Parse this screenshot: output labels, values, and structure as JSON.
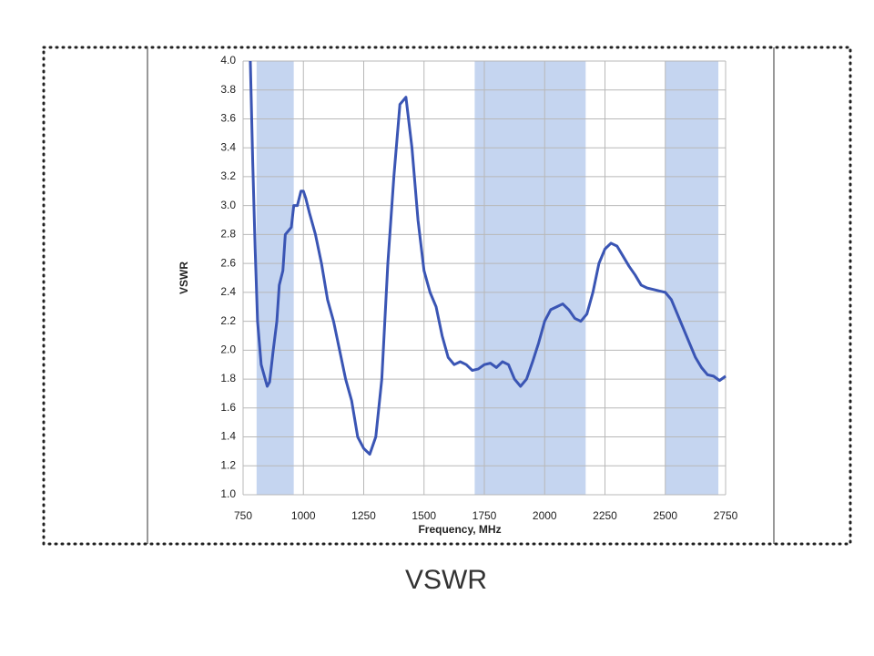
{
  "chart_data": {
    "type": "line",
    "caption": "VSWR",
    "y_label": "VSWR",
    "x_label": "Frequency, MHz",
    "xlim": [
      750,
      2750
    ],
    "xticks": [
      750,
      1000,
      1250,
      1500,
      1750,
      2000,
      2250,
      2500,
      2750
    ],
    "ylim": [
      1,
      4
    ],
    "yticks": [
      {
        "value": 1,
        "label": "1.0"
      },
      {
        "value": 1.2,
        "label": "1.2"
      },
      {
        "value": 1.4,
        "label": "1.4"
      },
      {
        "value": 1.6,
        "label": "1.6"
      },
      {
        "value": 1.8,
        "label": "1.8"
      },
      {
        "value": 2,
        "label": "2.0"
      },
      {
        "value": 2.2,
        "label": "2.2"
      },
      {
        "value": 2.4,
        "label": "2.4"
      },
      {
        "value": 2.6,
        "label": "2.6"
      },
      {
        "value": 2.8,
        "label": "2.8"
      },
      {
        "value": 3,
        "label": "3.0"
      },
      {
        "value": 3.2,
        "label": "3.2"
      },
      {
        "value": 3.4,
        "label": "3.4"
      },
      {
        "value": 3.6,
        "label": "3.6"
      },
      {
        "value": 3.8,
        "label": "3.8"
      },
      {
        "value": 4,
        "label": "4.0"
      }
    ],
    "grid": true,
    "bands": [
      [
        806,
        960
      ],
      [
        1710,
        2170
      ],
      [
        2500,
        2720
      ]
    ],
    "band_color": "#c5d5f0",
    "x": [
      780,
      790,
      800,
      810,
      825,
      850,
      860,
      875,
      890,
      900,
      915,
      925,
      950,
      960,
      975,
      990,
      1000,
      1010,
      1025,
      1050,
      1075,
      1100,
      1125,
      1150,
      1175,
      1200,
      1225,
      1250,
      1275,
      1300,
      1325,
      1350,
      1375,
      1400,
      1425,
      1450,
      1475,
      1500,
      1525,
      1550,
      1575,
      1600,
      1625,
      1650,
      1675,
      1700,
      1725,
      1750,
      1775,
      1800,
      1825,
      1850,
      1875,
      1900,
      1925,
      1950,
      1975,
      2000,
      2025,
      2050,
      2075,
      2100,
      2125,
      2150,
      2175,
      2200,
      2225,
      2250,
      2275,
      2300,
      2325,
      2350,
      2375,
      2400,
      2425,
      2450,
      2475,
      2500,
      2525,
      2550,
      2575,
      2600,
      2625,
      2650,
      2675,
      2700,
      2725,
      2750
    ],
    "series": [
      {
        "color": "#3a55b4",
        "values": [
          4.0,
          3.3,
          2.7,
          2.2,
          1.9,
          1.75,
          1.78,
          2.0,
          2.2,
          2.45,
          2.55,
          2.8,
          2.85,
          3.0,
          3.0,
          3.1,
          3.1,
          3.05,
          2.95,
          2.8,
          2.6,
          2.35,
          2.2,
          2.0,
          1.8,
          1.65,
          1.4,
          1.32,
          1.28,
          1.4,
          1.8,
          2.6,
          3.2,
          3.7,
          3.75,
          3.4,
          2.9,
          2.55,
          2.4,
          2.3,
          2.1,
          1.95,
          1.9,
          1.92,
          1.9,
          1.86,
          1.87,
          1.9,
          1.91,
          1.88,
          1.92,
          1.9,
          1.8,
          1.75,
          1.8,
          1.92,
          2.05,
          2.2,
          2.28,
          2.3,
          2.32,
          2.28,
          2.22,
          2.2,
          2.25,
          2.4,
          2.6,
          2.7,
          2.74,
          2.72,
          2.65,
          2.58,
          2.52,
          2.45,
          2.43,
          2.42,
          2.41,
          2.4,
          2.35,
          2.25,
          2.15,
          2.05,
          1.95,
          1.88,
          1.83,
          1.82,
          1.79,
          1.82
        ]
      }
    ]
  }
}
